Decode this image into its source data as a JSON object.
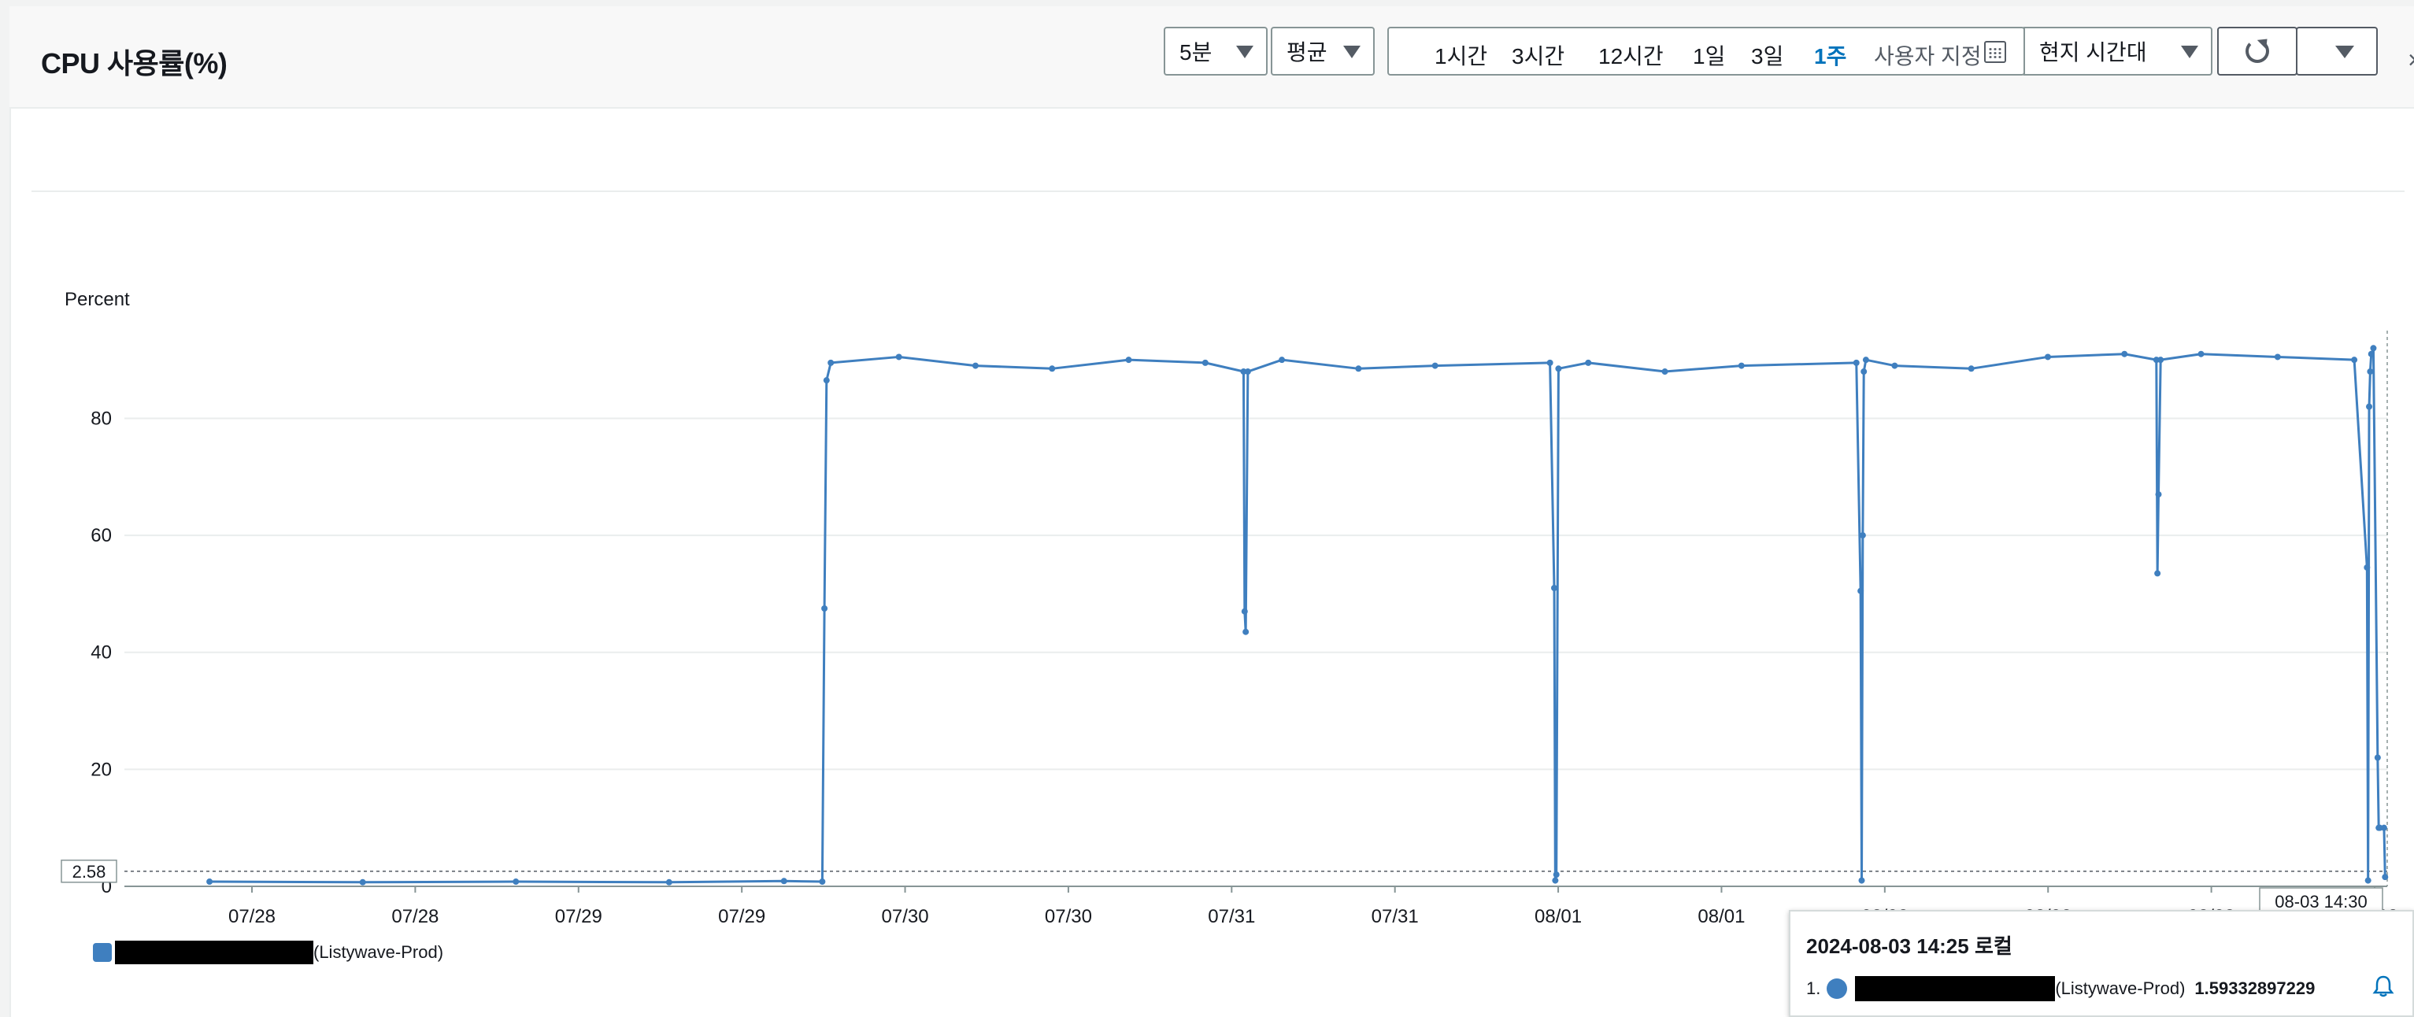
{
  "header": {
    "title": "CPU 사용률(%)",
    "period": "5분",
    "statistic": "평균",
    "ranges": [
      "1시간",
      "3시간",
      "12시간",
      "1일",
      "3일",
      "1주"
    ],
    "active_range": "1주",
    "custom_label": "사용자 지정",
    "timezone": "현지 시간대",
    "close_glyph": "×"
  },
  "chart_data": {
    "type": "line",
    "title": "CPU 사용률(%)",
    "ylabel": "Percent",
    "xlabel": "",
    "ylim": [
      0,
      95
    ],
    "yticks": [
      0,
      20,
      40,
      60,
      80
    ],
    "xtick_labels": [
      "07/28",
      "07/28",
      "07/29",
      "07/29",
      "07/30",
      "07/30",
      "07/31",
      "07/31",
      "08/01",
      "08/01",
      "08/02",
      "08/02",
      "08/03",
      "08/03"
    ],
    "threshold": {
      "label": "2.58",
      "value": 2.58
    },
    "hover_time_label": "08-03 14:30",
    "grid": true,
    "series": [
      {
        "name": "(Listywave-Prod)",
        "color": "#3f7fbf",
        "x": [
          "07/27 12:00",
          "07/28 00:00",
          "07/28 12:00",
          "07/29 00:00",
          "07/29 09:00",
          "07/29 12:00",
          "07/29 12:10",
          "07/29 12:20",
          "07/29 12:40",
          "07/29 18:00",
          "07/30 00:00",
          "07/30 06:00",
          "07/30 12:00",
          "07/30 18:00",
          "07/30 21:00",
          "07/30 21:05",
          "07/30 21:10",
          "07/30 21:20",
          "07/31 00:00",
          "07/31 06:00",
          "07/31 12:00",
          "07/31 21:00",
          "07/31 21:20",
          "07/31 21:25",
          "07/31 21:30",
          "07/31 21:40",
          "08/01 00:00",
          "08/01 06:00",
          "08/01 12:00",
          "08/01 21:00",
          "08/01 21:20",
          "08/01 21:25",
          "08/01 21:30",
          "08/01 21:35",
          "08/01 21:45",
          "08/02 00:00",
          "08/02 06:00",
          "08/02 12:00",
          "08/02 18:00",
          "08/02 20:30",
          "08/02 20:35",
          "08/02 20:40",
          "08/02 20:50",
          "08/03 00:00",
          "08/03 06:00",
          "08/03 12:00",
          "08/03 13:00",
          "08/03 13:05",
          "08/03 13:10",
          "08/03 13:15",
          "08/03 13:20",
          "08/03 13:30",
          "08/03 13:50",
          "08/03 13:55",
          "08/03 14:00",
          "08/03 14:20",
          "08/03 14:25"
        ],
        "values": [
          0.8,
          0.7,
          0.8,
          0.7,
          0.9,
          0.8,
          47.5,
          86.5,
          89.5,
          90.5,
          89.0,
          88.5,
          90.0,
          89.5,
          88.0,
          47.0,
          43.5,
          88.0,
          90.0,
          88.5,
          89.0,
          89.5,
          51.0,
          1.0,
          2.0,
          88.5,
          89.5,
          88.0,
          89.0,
          89.5,
          50.5,
          1.0,
          60.0,
          88.0,
          90.0,
          89.0,
          88.5,
          90.5,
          91.0,
          90.0,
          53.5,
          67.0,
          90.0,
          91.0,
          90.5,
          90.0,
          54.5,
          1.0,
          82.0,
          88.0,
          91.0,
          92.0,
          22.0,
          10.0,
          10.0,
          10.0,
          1.59
        ]
      }
    ]
  },
  "legend": {
    "label": "(Listywave-Prod)"
  },
  "tooltip": {
    "title": "2024-08-03 14:25 로컬",
    "index": "1.",
    "label": "(Listywave-Prod)",
    "value": "1.59332897229"
  }
}
